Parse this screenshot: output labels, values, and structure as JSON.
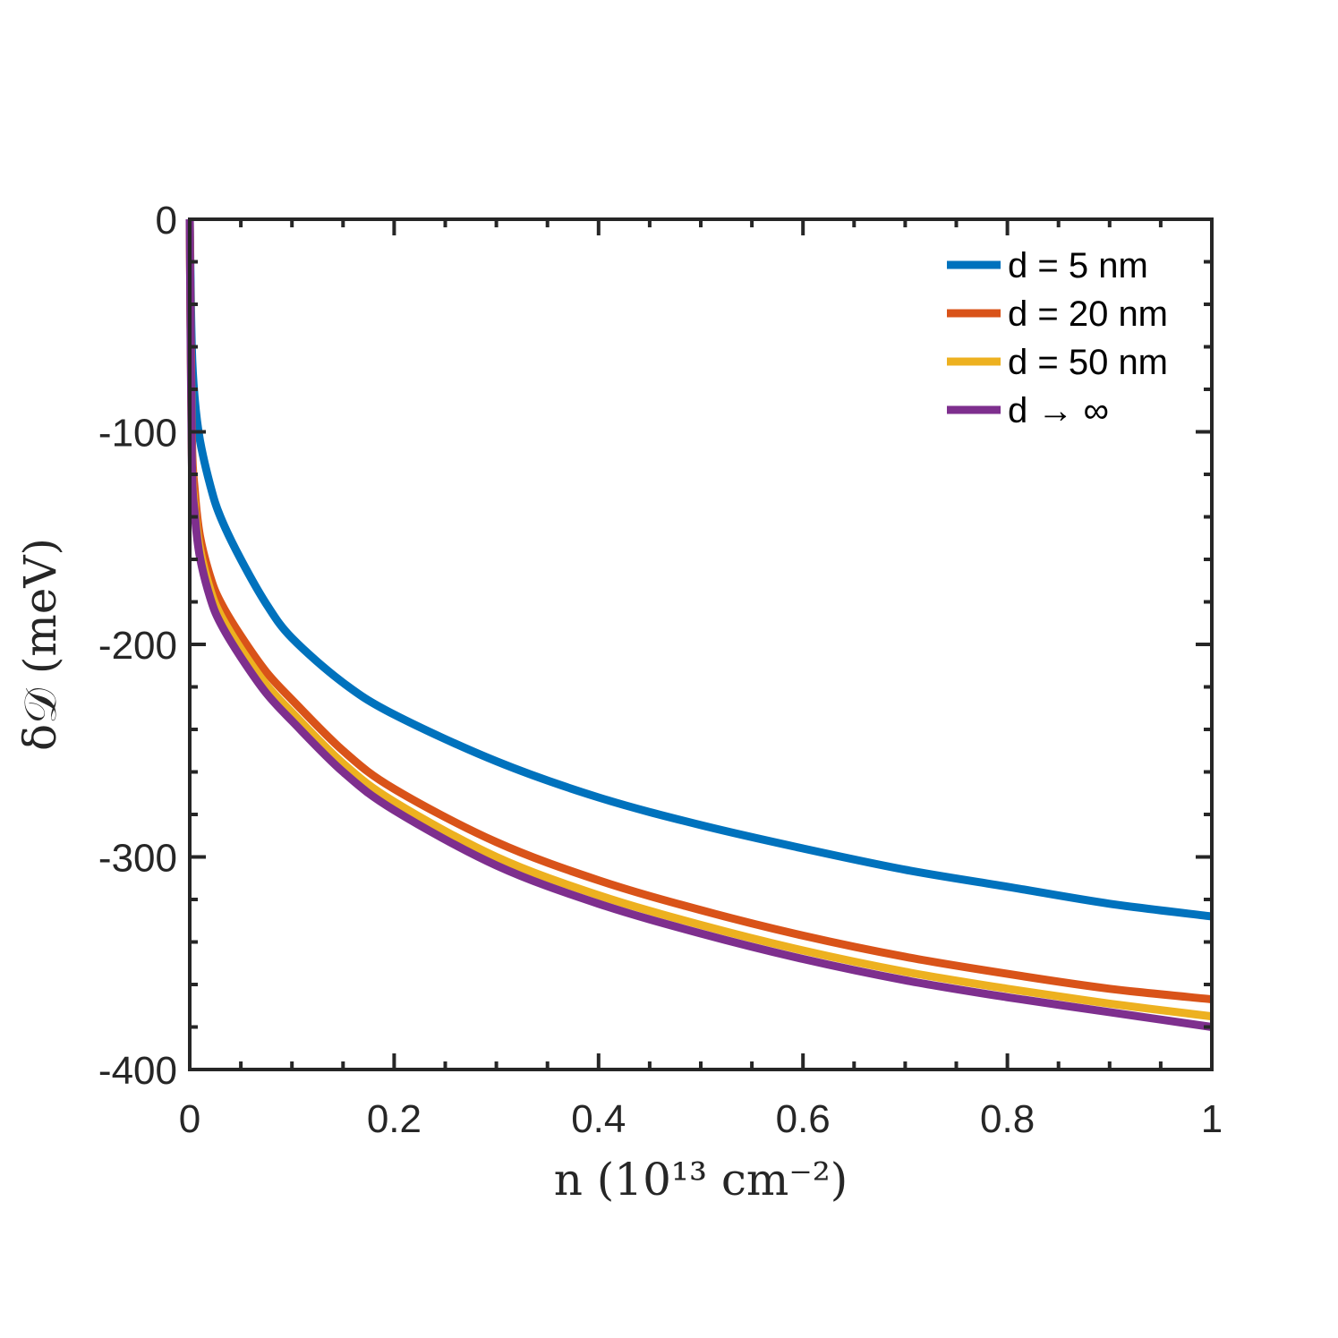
{
  "chart_data": {
    "type": "line",
    "xlabel": "n (10¹³ cm⁻²)",
    "ylabel": "δ𝒟 (meV)",
    "xlim": [
      0,
      1
    ],
    "ylim": [
      -400,
      0
    ],
    "xticks": [
      0,
      0.2,
      0.4,
      0.6,
      0.8,
      1
    ],
    "xtick_labels": [
      "0",
      "0.2",
      "0.4",
      "0.6",
      "0.8",
      "1"
    ],
    "yticks": [
      0,
      -100,
      -200,
      -300,
      -400
    ],
    "ytick_labels": [
      "0",
      "-100",
      "-200",
      "-300",
      "-400"
    ],
    "grid": false,
    "legend_position": "top-right",
    "series": [
      {
        "name": "d = 5 nm",
        "color": "#0072BD",
        "x": [
          0,
          0.002,
          0.005,
          0.01,
          0.02,
          0.03,
          0.05,
          0.075,
          0.1,
          0.15,
          0.2,
          0.3,
          0.4,
          0.5,
          0.6,
          0.7,
          0.8,
          0.9,
          1.0
        ],
        "y": [
          0,
          -60,
          -85,
          -104,
          -125,
          -140,
          -160,
          -181,
          -197,
          -218,
          -233,
          -255,
          -272,
          -285,
          -296,
          -306,
          -314,
          -322,
          -328
        ]
      },
      {
        "name": "d = 20 nm",
        "color": "#D95319",
        "x": [
          0,
          0.002,
          0.005,
          0.01,
          0.02,
          0.03,
          0.05,
          0.075,
          0.1,
          0.15,
          0.2,
          0.3,
          0.4,
          0.5,
          0.6,
          0.7,
          0.8,
          0.9,
          1.0
        ],
        "y": [
          0,
          -100,
          -128,
          -149,
          -168,
          -180,
          -196,
          -213,
          -226,
          -250,
          -268,
          -293,
          -311,
          -325,
          -337,
          -347,
          -355,
          -362,
          -367
        ]
      },
      {
        "name": "d = 50 nm",
        "color": "#EDB120",
        "x": [
          0,
          0.002,
          0.005,
          0.01,
          0.02,
          0.03,
          0.05,
          0.075,
          0.1,
          0.15,
          0.2,
          0.3,
          0.4,
          0.5,
          0.6,
          0.7,
          0.8,
          0.9,
          1.0
        ],
        "y": [
          0,
          -108,
          -135,
          -155,
          -174,
          -186,
          -202,
          -219,
          -232,
          -256,
          -274,
          -300,
          -318,
          -332,
          -344,
          -354,
          -362,
          -369,
          -375
        ]
      },
      {
        "name": "d → ∞",
        "color": "#7E2F8E",
        "x": [
          0,
          0.002,
          0.005,
          0.01,
          0.02,
          0.03,
          0.05,
          0.075,
          0.1,
          0.15,
          0.2,
          0.3,
          0.4,
          0.5,
          0.6,
          0.7,
          0.8,
          0.9,
          1.0
        ],
        "y": [
          0,
          -112,
          -139,
          -159,
          -178,
          -190,
          -206,
          -223,
          -236,
          -260,
          -278,
          -304,
          -322,
          -336,
          -348,
          -358,
          -366,
          -373,
          -380
        ]
      }
    ]
  }
}
